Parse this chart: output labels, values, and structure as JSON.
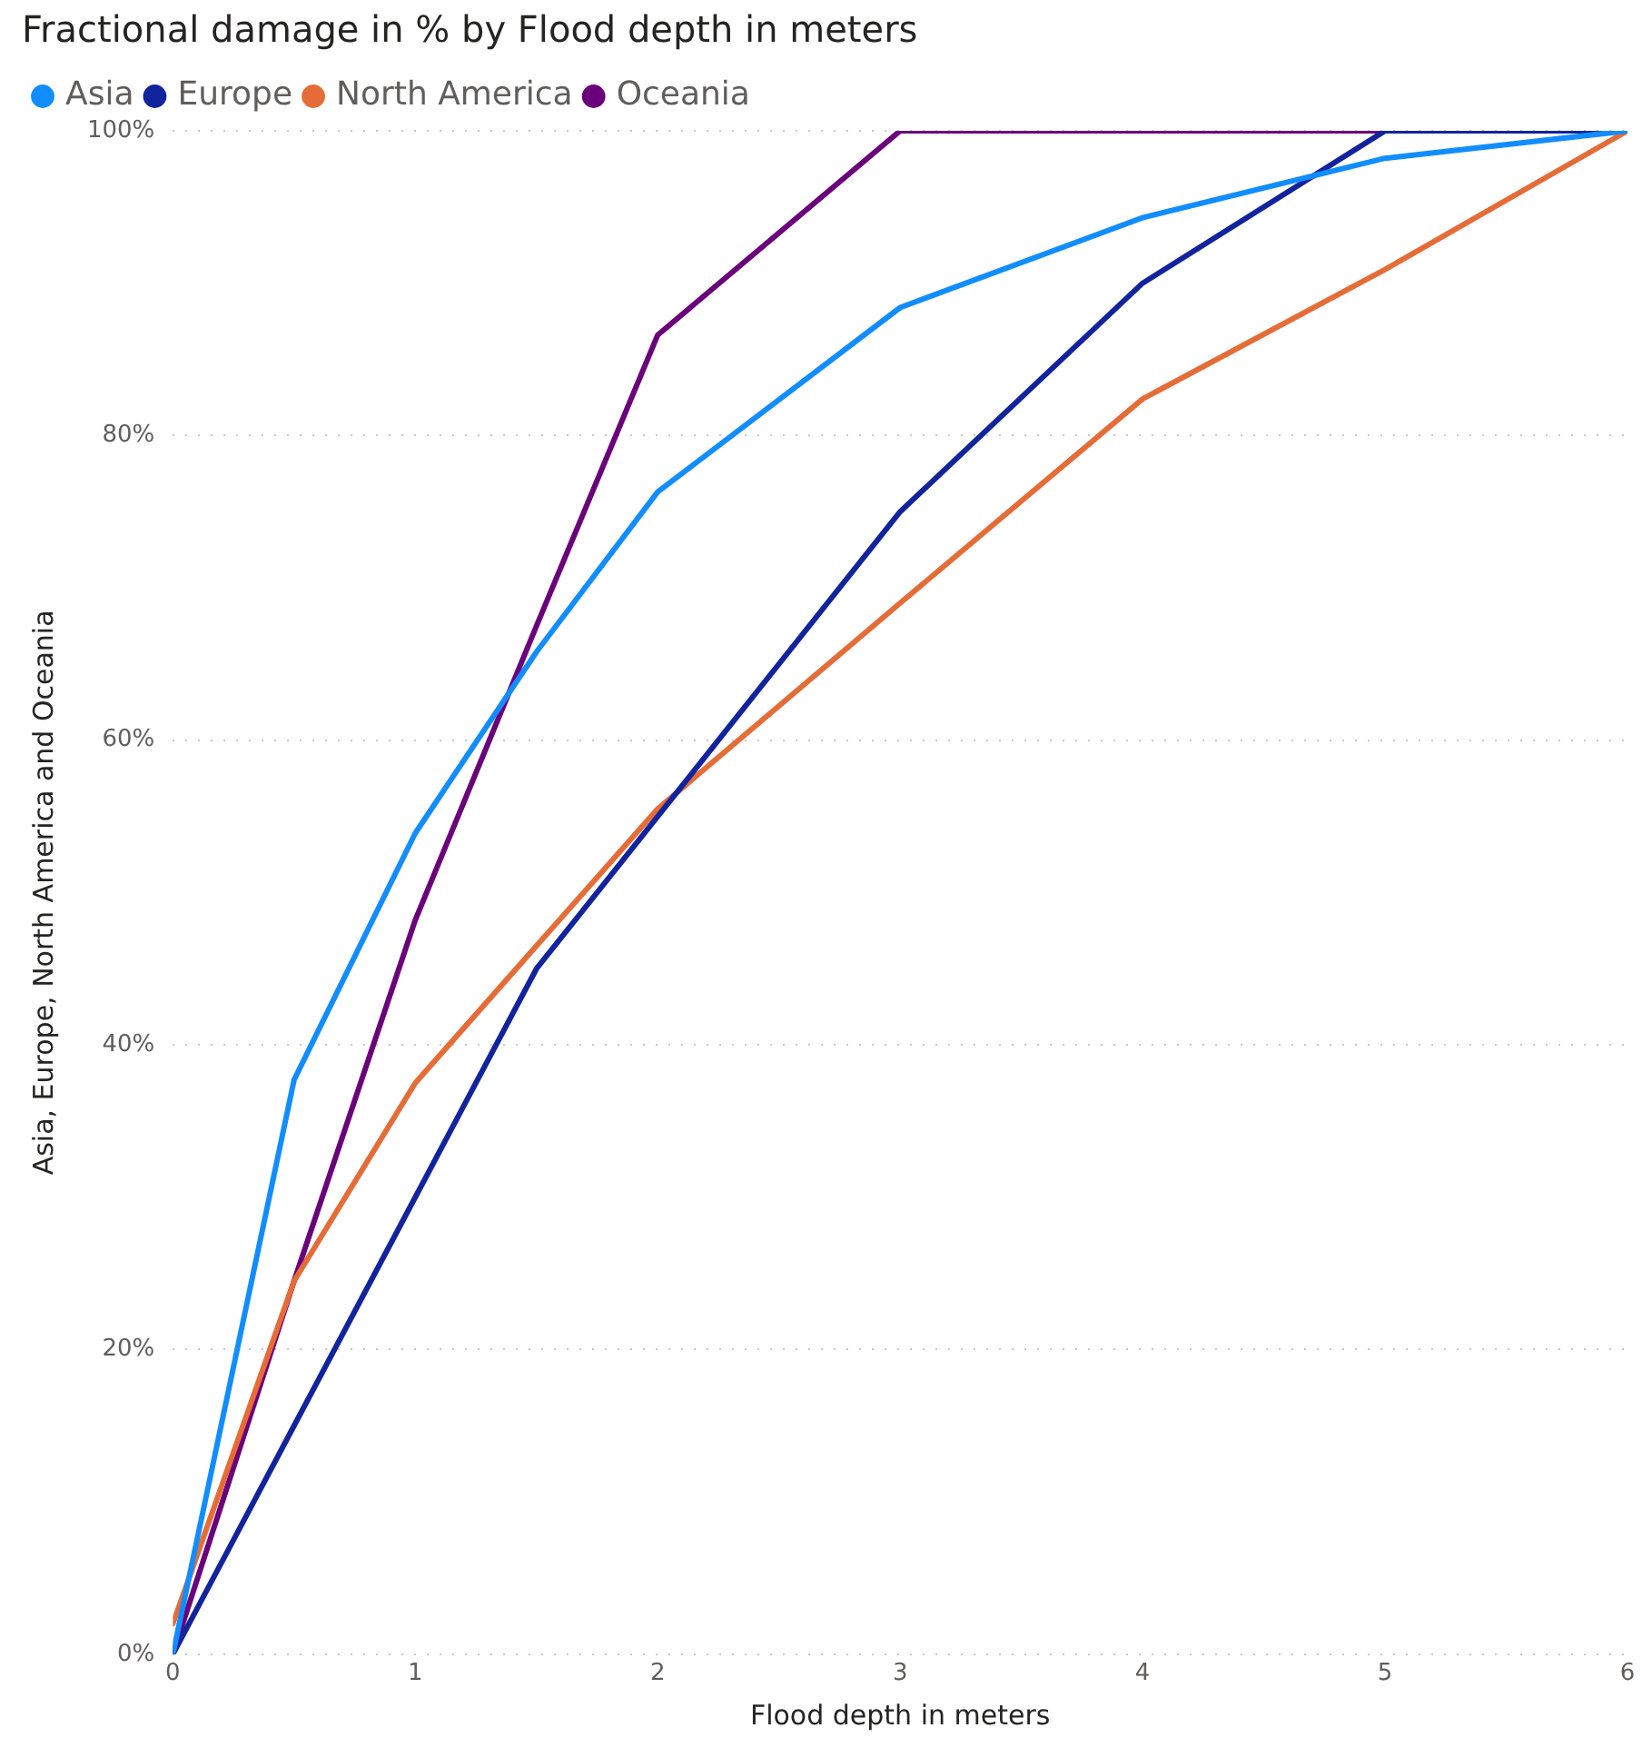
{
  "chart_data": {
    "type": "line",
    "title": "Fractional damage in % by Flood depth in meters",
    "xlabel": "Flood depth in meters",
    "ylabel": "Asia, Europe, North America and Oceania",
    "x": [
      0,
      0.5,
      1,
      1.5,
      2,
      3,
      4,
      5,
      6
    ],
    "series": [
      {
        "name": "Asia",
        "color": "#118dff",
        "values": [
          0,
          37.7,
          53.9,
          65.8,
          76.3,
          88.4,
          94.3,
          98.2,
          100
        ]
      },
      {
        "name": "Europe",
        "color": "#12239e",
        "values": [
          0,
          15,
          30,
          45,
          55,
          75,
          90,
          100,
          100
        ]
      },
      {
        "name": "North America",
        "color": "#e66c37",
        "values": [
          2,
          24.5,
          37.5,
          46.5,
          55.5,
          69,
          82.4,
          90.9,
          100
        ]
      },
      {
        "name": "Oceania",
        "color": "#6b007b",
        "values": [
          0,
          24.5,
          48.2,
          67.5,
          86.6,
          100,
          100,
          100,
          100
        ]
      }
    ],
    "xlim": [
      0,
      6
    ],
    "xticks": [
      0,
      1,
      2,
      3,
      4,
      5,
      6
    ],
    "ylim": [
      0,
      100
    ],
    "yticks": [
      {
        "value": 0,
        "label": "0%"
      },
      {
        "value": 20,
        "label": "20%"
      },
      {
        "value": 40,
        "label": "40%"
      },
      {
        "value": 60,
        "label": "60%"
      },
      {
        "value": 80,
        "label": "80%"
      },
      {
        "value": 100,
        "label": "100%"
      }
    ],
    "grid": "y",
    "legend": "top left",
    "marker": "none",
    "line_style": "solid"
  }
}
